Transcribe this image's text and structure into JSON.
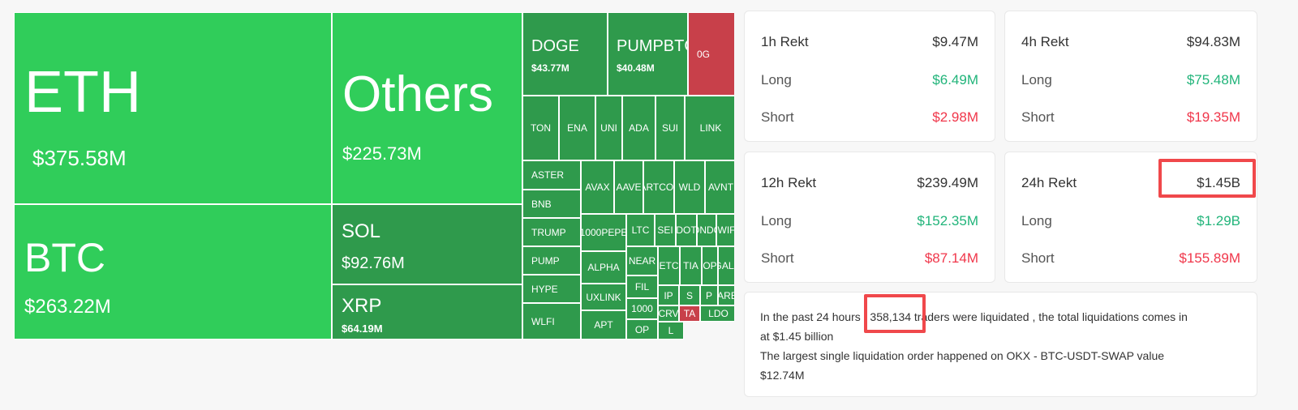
{
  "treemap": {
    "colors": {
      "bright_green": "#30cd5a",
      "dark_green": "#2f9a4c",
      "red": "#c8404a"
    },
    "tiles": [
      {
        "symbol": "ETH",
        "value": "$375.58M",
        "color": "bright"
      },
      {
        "symbol": "BTC",
        "value": "$263.22M",
        "color": "bright"
      },
      {
        "symbol": "Others",
        "value": "$225.73M",
        "color": "bright"
      },
      {
        "symbol": "SOL",
        "value": "$92.76M",
        "color": "dark"
      },
      {
        "symbol": "XRP",
        "value": "$64.19M",
        "color": "dark"
      },
      {
        "symbol": "DOGE",
        "value": "$43.77M",
        "color": "dark"
      },
      {
        "symbol": "PUMPBTC",
        "value": "$40.48M",
        "color": "dark"
      },
      {
        "symbol": "0G",
        "value": "",
        "color": "red"
      },
      {
        "symbol": "TON",
        "color": "dark"
      },
      {
        "symbol": "ENA",
        "color": "dark"
      },
      {
        "symbol": "UNI",
        "color": "dark"
      },
      {
        "symbol": "ADA",
        "color": "dark"
      },
      {
        "symbol": "SUI",
        "color": "dark"
      },
      {
        "symbol": "LINK",
        "color": "dark"
      },
      {
        "symbol": "ASTER",
        "color": "dark"
      },
      {
        "symbol": "BNB",
        "color": "dark"
      },
      {
        "symbol": "TRUMP",
        "color": "dark"
      },
      {
        "symbol": "PUMP",
        "color": "dark"
      },
      {
        "symbol": "HYPE",
        "color": "dark"
      },
      {
        "symbol": "WLFI",
        "color": "dark"
      },
      {
        "symbol": "AVAX",
        "color": "dark"
      },
      {
        "symbol": "AAVE",
        "color": "dark"
      },
      {
        "symbol": "FARTCOIN",
        "color": "dark"
      },
      {
        "symbol": "WLD",
        "color": "dark"
      },
      {
        "symbol": "AVNT",
        "color": "dark"
      },
      {
        "symbol": "1000PEPE",
        "color": "dark"
      },
      {
        "symbol": "LTC",
        "color": "dark"
      },
      {
        "symbol": "SEI",
        "color": "dark"
      },
      {
        "symbol": "DOT",
        "color": "dark"
      },
      {
        "symbol": "ONDO",
        "color": "dark"
      },
      {
        "symbol": "WIF",
        "color": "dark"
      },
      {
        "symbol": "ALPHA",
        "color": "dark"
      },
      {
        "symbol": "NEAR",
        "color": "dark"
      },
      {
        "symbol": "ETC",
        "color": "dark"
      },
      {
        "symbol": "TIA",
        "color": "dark"
      },
      {
        "symbol": "OP",
        "color": "dark"
      },
      {
        "symbol": "GALA",
        "color": "dark"
      },
      {
        "symbol": "UXLINK",
        "color": "dark"
      },
      {
        "symbol": "FIL",
        "color": "dark"
      },
      {
        "symbol": "IP",
        "color": "dark"
      },
      {
        "symbol": "S",
        "color": "dark"
      },
      {
        "symbol": "P",
        "color": "dark"
      },
      {
        "symbol": "ARB",
        "color": "dark"
      },
      {
        "symbol": "APT",
        "color": "dark"
      },
      {
        "symbol": "1000",
        "color": "dark"
      },
      {
        "symbol": "CRV",
        "color": "dark"
      },
      {
        "symbol": "TA",
        "color": "red"
      },
      {
        "symbol": "LDO",
        "color": "dark"
      },
      {
        "symbol": "OP",
        "color": "dark"
      },
      {
        "symbol": "L",
        "color": "dark"
      }
    ]
  },
  "cards": {
    "h1": {
      "title": "1h Rekt",
      "total": "$9.47M",
      "long_label": "Long",
      "long": "$6.49M",
      "short_label": "Short",
      "short": "$2.98M"
    },
    "h4": {
      "title": "4h Rekt",
      "total": "$94.83M",
      "long_label": "Long",
      "long": "$75.48M",
      "short_label": "Short",
      "short": "$19.35M"
    },
    "h12": {
      "title": "12h Rekt",
      "total": "$239.49M",
      "long_label": "Long",
      "long": "$152.35M",
      "short_label": "Short",
      "short": "$87.14M"
    },
    "h24": {
      "title": "24h Rekt",
      "total": "$1.45B",
      "long_label": "Long",
      "long": "$1.29B",
      "short_label": "Short",
      "short": "$155.89M"
    }
  },
  "summary": {
    "line1_prefix": "In the past 24 hours ,",
    "traders_count": "358,134",
    "line1_suffix": "traders were liquidated , the total liquidations comes in",
    "line2": "at $1.45 billion",
    "line3": "The largest single liquidation order happened on OKX - BTC-USDT-SWAP value",
    "line4": "$12.74M"
  }
}
